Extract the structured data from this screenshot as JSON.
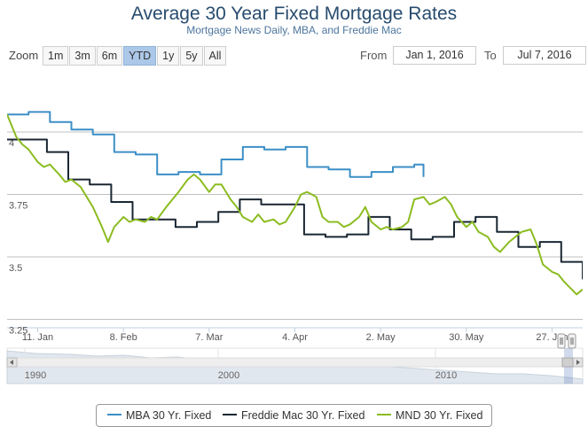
{
  "chart_data": {
    "type": "line",
    "title": "Average 30 Year Fixed Mortgage Rates",
    "subtitle": "Mortgage News Daily, MBA, and Freddie Mac",
    "y_ticks": [
      "4",
      "3.75",
      "3.5",
      "3.25"
    ],
    "x_ticks": [
      "11. Jan",
      "8. Feb",
      "7. Mar",
      "4. Apr",
      "2. May",
      "30. May",
      "27. Jun"
    ],
    "ylim": [
      3.25,
      4.07
    ],
    "xlim": [
      "2016-01-01",
      "2016-07-07"
    ],
    "grid": true,
    "series": [
      {
        "name": "MBA 30 Yr. Fixed",
        "color": "#3c8fc7",
        "step": true,
        "x": [
          "2016-01-01",
          "2016-01-08",
          "2016-01-15",
          "2016-01-22",
          "2016-01-29",
          "2016-02-05",
          "2016-02-12",
          "2016-02-19",
          "2016-02-26",
          "2016-03-04",
          "2016-03-11",
          "2016-03-18",
          "2016-03-25",
          "2016-04-01",
          "2016-04-08",
          "2016-04-15",
          "2016-04-22",
          "2016-04-29",
          "2016-05-06",
          "2016-05-13",
          "2016-05-16"
        ],
        "values": [
          4.07,
          4.08,
          4.04,
          4.01,
          3.99,
          3.92,
          3.91,
          3.83,
          3.84,
          3.83,
          3.89,
          3.94,
          3.93,
          3.94,
          3.86,
          3.85,
          3.82,
          3.84,
          3.86,
          3.87,
          3.82
        ]
      },
      {
        "name": "Freddie Mac 30 Yr. Fixed",
        "color": "#1a2733",
        "step": true,
        "x": [
          "2016-01-01",
          "2016-01-07",
          "2016-01-14",
          "2016-01-21",
          "2016-01-28",
          "2016-02-04",
          "2016-02-11",
          "2016-02-18",
          "2016-02-25",
          "2016-03-03",
          "2016-03-10",
          "2016-03-17",
          "2016-03-24",
          "2016-03-31",
          "2016-04-07",
          "2016-04-14",
          "2016-04-21",
          "2016-04-28",
          "2016-05-05",
          "2016-05-12",
          "2016-05-19",
          "2016-05-26",
          "2016-06-02",
          "2016-06-09",
          "2016-06-16",
          "2016-06-23",
          "2016-06-30",
          "2016-07-07"
        ],
        "values": [
          3.97,
          3.97,
          3.92,
          3.81,
          3.79,
          3.72,
          3.65,
          3.65,
          3.62,
          3.64,
          3.68,
          3.73,
          3.71,
          3.71,
          3.59,
          3.58,
          3.59,
          3.66,
          3.61,
          3.57,
          3.58,
          3.64,
          3.66,
          3.6,
          3.54,
          3.56,
          3.48,
          3.41
        ]
      },
      {
        "name": "MND 30 Yr. Fixed",
        "color": "#8bbc21",
        "step": false,
        "x": [
          "2016-01-01",
          "2016-01-04",
          "2016-01-06",
          "2016-01-08",
          "2016-01-11",
          "2016-01-13",
          "2016-01-15",
          "2016-01-18",
          "2016-01-20",
          "2016-01-22",
          "2016-01-25",
          "2016-01-27",
          "2016-01-29",
          "2016-02-01",
          "2016-02-03",
          "2016-02-05",
          "2016-02-08",
          "2016-02-10",
          "2016-02-12",
          "2016-02-15",
          "2016-02-17",
          "2016-02-19",
          "2016-02-22",
          "2016-02-24",
          "2016-02-26",
          "2016-02-29",
          "2016-03-02",
          "2016-03-04",
          "2016-03-07",
          "2016-03-09",
          "2016-03-11",
          "2016-03-14",
          "2016-03-16",
          "2016-03-18",
          "2016-03-21",
          "2016-03-23",
          "2016-03-25",
          "2016-03-28",
          "2016-03-30",
          "2016-04-01",
          "2016-04-04",
          "2016-04-06",
          "2016-04-08",
          "2016-04-11",
          "2016-04-13",
          "2016-04-15",
          "2016-04-18",
          "2016-04-20",
          "2016-04-22",
          "2016-04-25",
          "2016-04-27",
          "2016-04-29",
          "2016-05-02",
          "2016-05-04",
          "2016-05-06",
          "2016-05-09",
          "2016-05-11",
          "2016-05-13",
          "2016-05-16",
          "2016-05-18",
          "2016-05-20",
          "2016-05-23",
          "2016-05-25",
          "2016-05-27",
          "2016-05-30",
          "2016-06-01",
          "2016-06-03",
          "2016-06-06",
          "2016-06-08",
          "2016-06-10",
          "2016-06-13",
          "2016-06-15",
          "2016-06-17",
          "2016-06-20",
          "2016-06-22",
          "2016-06-24",
          "2016-06-27",
          "2016-06-29",
          "2016-07-01",
          "2016-07-05",
          "2016-07-07"
        ],
        "values": [
          4.07,
          3.98,
          3.95,
          3.93,
          3.88,
          3.86,
          3.87,
          3.83,
          3.8,
          3.81,
          3.78,
          3.74,
          3.7,
          3.62,
          3.56,
          3.62,
          3.66,
          3.64,
          3.65,
          3.64,
          3.66,
          3.65,
          3.7,
          3.73,
          3.76,
          3.81,
          3.83,
          3.81,
          3.76,
          3.79,
          3.79,
          3.73,
          3.7,
          3.66,
          3.64,
          3.67,
          3.64,
          3.65,
          3.63,
          3.64,
          3.7,
          3.75,
          3.76,
          3.74,
          3.66,
          3.64,
          3.64,
          3.62,
          3.63,
          3.66,
          3.7,
          3.64,
          3.61,
          3.62,
          3.61,
          3.62,
          3.64,
          3.73,
          3.74,
          3.71,
          3.72,
          3.74,
          3.71,
          3.66,
          3.62,
          3.64,
          3.6,
          3.58,
          3.54,
          3.52,
          3.56,
          3.58,
          3.6,
          3.61,
          3.55,
          3.47,
          3.44,
          3.43,
          3.4,
          3.35,
          3.37
        ]
      }
    ]
  },
  "toolbar": {
    "zoom_label": "Zoom",
    "zoom_buttons": [
      "1m",
      "3m",
      "6m",
      "YTD",
      "1y",
      "5y",
      "All"
    ],
    "active_zoom": "YTD",
    "from_label": "From",
    "from_value": "Jan 1, 2016",
    "to_label": "To",
    "to_value": "Jul 7, 2016"
  },
  "navigator": {
    "x_labels": [
      "1990",
      "2000",
      "2010"
    ],
    "area_color": "#e1e7ee",
    "mask_color": "#6685c2"
  }
}
